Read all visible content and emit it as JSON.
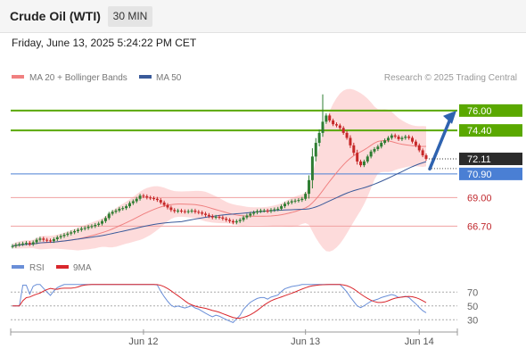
{
  "header": {
    "title": "Crude Oil (WTI)",
    "timeframe": "30 MIN"
  },
  "datetime": "Friday, June 13, 2025 5:24:22 PM CET",
  "colors": {
    "ma20": "#f08080",
    "ma50": "#3a5a9a",
    "bollinger_fill": "#fdd5d5",
    "resistance": "#5aa800",
    "pivot": "#4a7fd4",
    "support": "#f0a0a0",
    "support_text": "#c0282d",
    "candle_up": "#2e7d32",
    "candle_down": "#c62828",
    "rsi": "#6a8fd8",
    "rsi_ma": "#d9262c",
    "arrow": "#2f63b0"
  },
  "chart_data": [
    {
      "type": "candlestick",
      "legend": [
        {
          "name": "MA 20 + Bollinger Bands",
          "color": "#f08080"
        },
        {
          "name": "MA 50",
          "color": "#3a5a9a"
        }
      ],
      "legend_placement": "top-left",
      "source": "Research © 2025 Trading Central",
      "ylim": [
        64.5,
        78.0
      ],
      "x_ticks": [
        {
          "label": "Jun 12",
          "index": 38
        },
        {
          "label": "Jun 13",
          "index": 85
        },
        {
          "label": "Jun 14",
          "index": 118
        }
      ],
      "levels": [
        {
          "value": 76.0,
          "label": "76.00",
          "kind": "resistance"
        },
        {
          "value": 74.4,
          "label": "74.40",
          "kind": "resistance"
        },
        {
          "value": 70.9,
          "label": "70.90",
          "kind": "pivot"
        },
        {
          "value": 69.0,
          "label": "69.00",
          "kind": "support"
        },
        {
          "value": 66.7,
          "label": "66.70",
          "kind": "support"
        }
      ],
      "last_price": {
        "value": 72.11,
        "label": "72.11"
      },
      "target_arrow": {
        "from": 71.3,
        "to": 76.0
      },
      "close": [
        65.1,
        65.2,
        65.25,
        65.3,
        65.35,
        65.25,
        65.4,
        65.6,
        65.7,
        65.6,
        65.55,
        65.5,
        65.65,
        65.8,
        65.9,
        66.0,
        66.1,
        66.2,
        66.3,
        66.4,
        66.5,
        66.55,
        66.65,
        66.7,
        66.8,
        66.9,
        67.1,
        67.35,
        67.7,
        67.85,
        67.95,
        68.1,
        68.15,
        68.3,
        68.55,
        68.7,
        68.9,
        69.15,
        69.1,
        69.0,
        68.95,
        68.9,
        68.8,
        68.6,
        68.4,
        68.2,
        68.0,
        67.9,
        67.95,
        67.9,
        67.85,
        67.9,
        67.95,
        67.85,
        67.8,
        67.7,
        67.6,
        67.5,
        67.4,
        67.45,
        67.4,
        67.3,
        67.2,
        67.1,
        67.0,
        67.1,
        67.2,
        67.4,
        67.55,
        67.7,
        67.8,
        67.9,
        67.95,
        67.95,
        67.9,
        68.0,
        68.05,
        68.1,
        68.3,
        68.5,
        68.6,
        68.7,
        68.75,
        68.8,
        68.9,
        69.3,
        70.4,
        72.3,
        73.4,
        74.2,
        75.1,
        75.6,
        75.2,
        74.9,
        74.8,
        74.6,
        74.2,
        73.8,
        73.2,
        72.6,
        71.9,
        71.6,
        71.9,
        72.3,
        72.7,
        72.9,
        73.1,
        73.4,
        73.6,
        73.8,
        74.0,
        73.9,
        73.7,
        73.8,
        73.9,
        73.8,
        73.5,
        73.2,
        72.8,
        72.4,
        72.11
      ],
      "rsi": {
        "legend": [
          {
            "name": "RSI",
            "color": "#6a8fd8"
          },
          {
            "name": "9MA",
            "color": "#d9262c"
          }
        ],
        "ylim": [
          20,
          82
        ],
        "ticks": [
          70,
          50,
          30
        ],
        "ma_period": 9
      }
    }
  ]
}
